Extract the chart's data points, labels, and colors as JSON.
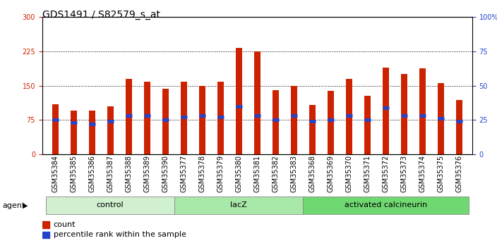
{
  "title": "GDS1491 / S82579_s_at",
  "categories": [
    "GSM35384",
    "GSM35385",
    "GSM35386",
    "GSM35387",
    "GSM35388",
    "GSM35389",
    "GSM35390",
    "GSM35377",
    "GSM35378",
    "GSM35379",
    "GSM35380",
    "GSM35381",
    "GSM35382",
    "GSM35383",
    "GSM35368",
    "GSM35369",
    "GSM35370",
    "GSM35371",
    "GSM35372",
    "GSM35373",
    "GSM35374",
    "GSM35375",
    "GSM35376"
  ],
  "count_values": [
    110,
    95,
    95,
    105,
    165,
    158,
    143,
    158,
    150,
    158,
    232,
    225,
    140,
    150,
    108,
    138,
    165,
    128,
    190,
    175,
    188,
    155,
    118
  ],
  "percentile_values": [
    25,
    23,
    22,
    24,
    28,
    28,
    25,
    27,
    28,
    27,
    35,
    28,
    25,
    28,
    24,
    25,
    28,
    25,
    34,
    28,
    28,
    26,
    24
  ],
  "groups": [
    {
      "label": "control",
      "start": 0,
      "end": 7,
      "color": "#d0f0d0"
    },
    {
      "label": "lacZ",
      "start": 7,
      "end": 14,
      "color": "#a8e8a8"
    },
    {
      "label": "activated calcineurin",
      "start": 14,
      "end": 23,
      "color": "#70d870"
    }
  ],
  "agent_label": "agent",
  "ylim_left": [
    0,
    300
  ],
  "ylim_right": [
    0,
    100
  ],
  "yticks_left": [
    0,
    75,
    150,
    225,
    300
  ],
  "yticks_right": [
    0,
    25,
    50,
    75,
    100
  ],
  "bar_color": "#cc2200",
  "percentile_color": "#2244cc",
  "bar_width": 0.35,
  "background_color": "#ffffff",
  "grid_color": "#000000",
  "title_fontsize": 10,
  "tick_fontsize": 7,
  "group_fontsize": 8,
  "legend_fontsize": 8
}
